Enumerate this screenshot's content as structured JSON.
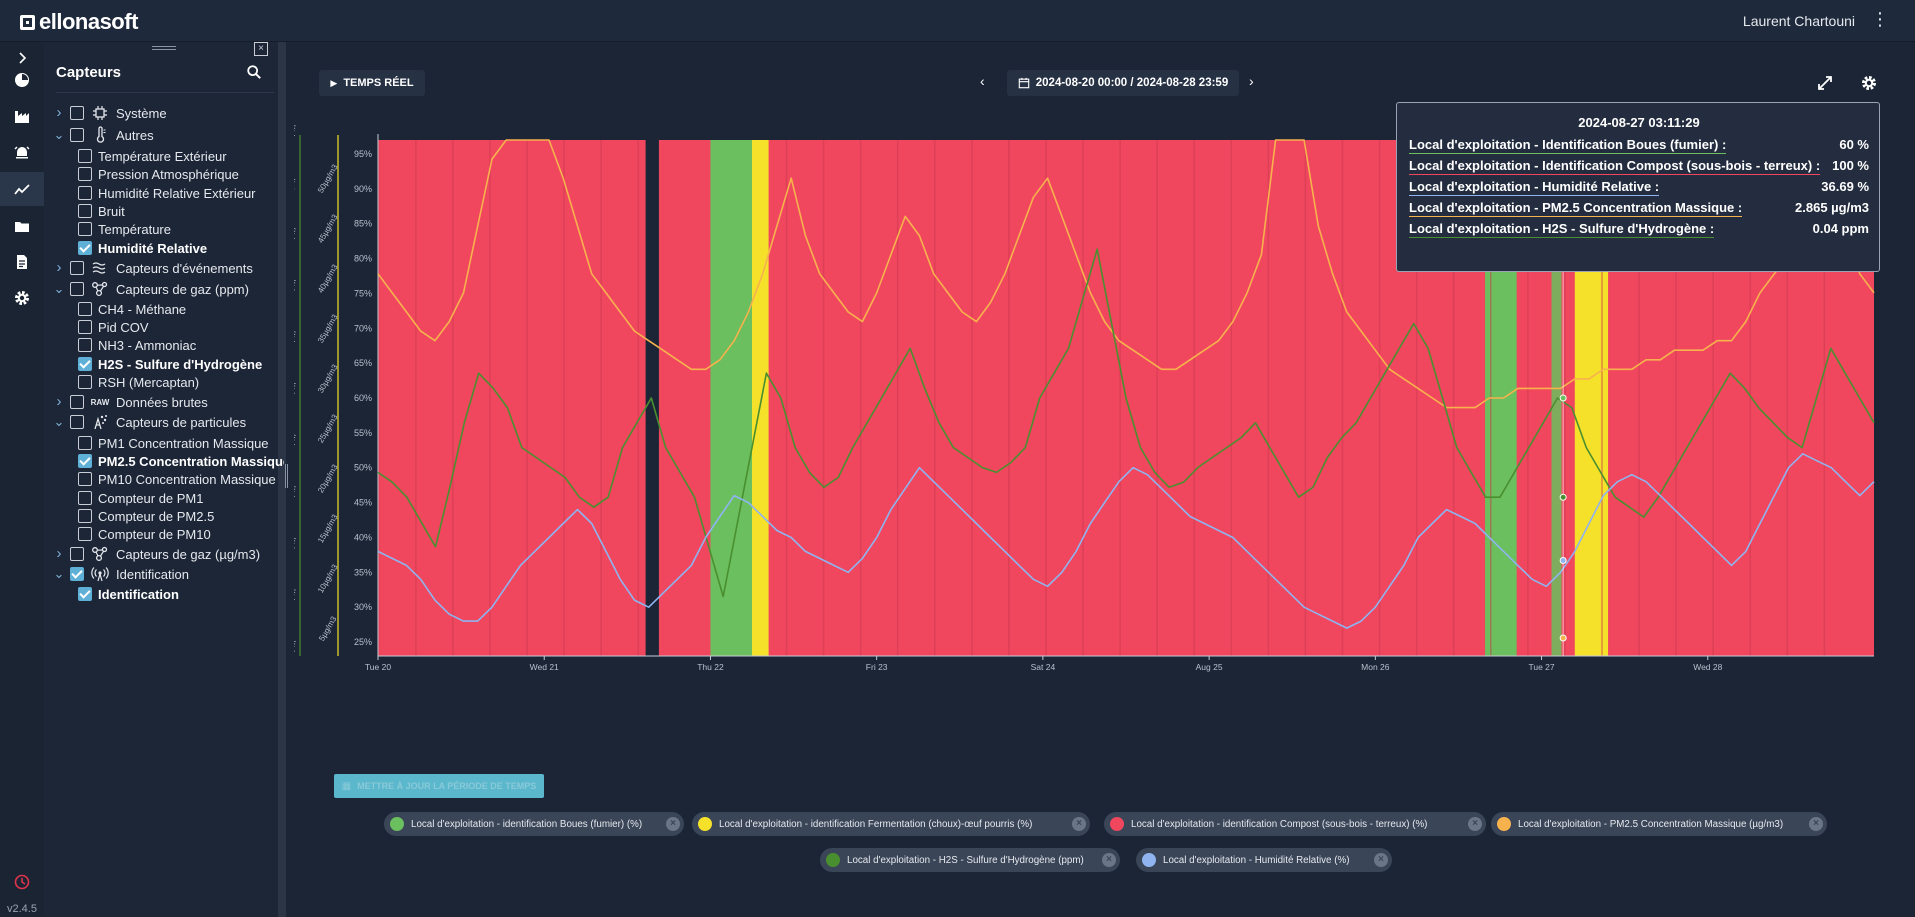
{
  "app": {
    "logo": "ellonasoft",
    "user": "Laurent Chartouni",
    "version": "v2.4.5"
  },
  "rail": [
    "chevron-right-icon",
    "dashboard-icon",
    "factory-icon",
    "alarm-icon",
    "chart-line-icon",
    "folder-icon",
    "document-icon",
    "gear-icon"
  ],
  "sidebar": {
    "title": "Capteurs",
    "tree": [
      {
        "label": "Système",
        "level": 0,
        "expand": true,
        "checked": false,
        "icon": "cpu-icon"
      },
      {
        "label": "Autres",
        "level": 0,
        "expand": "open",
        "checked": false,
        "icon": "thermometer-icon"
      },
      {
        "label": "Température Extérieur",
        "level": 1,
        "checked": false
      },
      {
        "label": "Pression Atmosphérique",
        "level": 1,
        "checked": false
      },
      {
        "label": "Humidité Relative Extérieur",
        "level": 1,
        "checked": false
      },
      {
        "label": "Bruit",
        "level": 1,
        "checked": false
      },
      {
        "label": "Température",
        "level": 1,
        "checked": false
      },
      {
        "label": "Humidité Relative",
        "level": 1,
        "checked": true
      },
      {
        "label": "Capteurs d'événements",
        "level": 0,
        "expand": true,
        "checked": false,
        "icon": "waves-icon"
      },
      {
        "label": "Capteurs de gaz (ppm)",
        "level": 0,
        "expand": "open",
        "checked": false,
        "icon": "molecule-icon"
      },
      {
        "label": "CH4 - Méthane",
        "level": 1,
        "checked": false
      },
      {
        "label": "Pid COV",
        "level": 1,
        "checked": false
      },
      {
        "label": "NH3 - Ammoniac",
        "level": 1,
        "checked": false
      },
      {
        "label": "H2S - Sulfure d'Hydrogène",
        "level": 1,
        "checked": true
      },
      {
        "label": "RSH (Mercaptan)",
        "level": 1,
        "checked": false
      },
      {
        "label": "Données brutes",
        "level": 0,
        "expand": true,
        "checked": false,
        "icon": "raw-icon",
        "iconText": "RAW"
      },
      {
        "label": "Capteurs de particules",
        "level": 0,
        "expand": "open",
        "checked": false,
        "icon": "particles-icon"
      },
      {
        "label": "PM1 Concentration Massique",
        "level": 1,
        "checked": false
      },
      {
        "label": "PM2.5 Concentration Massique",
        "level": 1,
        "checked": true
      },
      {
        "label": "PM10 Concentration Massique",
        "level": 1,
        "checked": false
      },
      {
        "label": "Compteur de PM1",
        "level": 1,
        "checked": false
      },
      {
        "label": "Compteur de PM2.5",
        "level": 1,
        "checked": false
      },
      {
        "label": "Compteur de PM10",
        "level": 1,
        "checked": false
      },
      {
        "label": "Capteurs de gaz (µg/m3)",
        "level": 0,
        "expand": true,
        "checked": false,
        "icon": "molecule-icon"
      },
      {
        "label": "Identification",
        "level": 0,
        "expand": "open",
        "checked": true,
        "icon": "antenna-icon"
      },
      {
        "label": "Identification",
        "level": 1,
        "checked": true
      }
    ]
  },
  "toolbar": {
    "realtime": "TEMPS RÉEL",
    "period": "2024-08-20 00:00 / 2024-08-28 23:59",
    "update": "METTRE À JOUR LA PÉRIODE DE TEMPS"
  },
  "colors": {
    "red": "#f0475f",
    "green": "#6bbf5e",
    "yellow": "#f5e02a",
    "orange": "#f7b24d",
    "darkgreen": "#4a8f2f",
    "blue": "#8fb4f0"
  },
  "chart_data": {
    "type": "line",
    "x_ticks": [
      "Tue 20",
      "Wed 21",
      "Thu 22",
      "Fri 23",
      "Sat 24",
      "Aug 25",
      "Mon 26",
      "Tue 27",
      "Wed 28"
    ],
    "y_ticks_percent": [
      "95%",
      "90%",
      "85%",
      "80%",
      "75%",
      "70%",
      "65%",
      "60%",
      "55%",
      "50%",
      "45%",
      "40%",
      "35%",
      "30%",
      "25%"
    ],
    "y_ticks_ugm3": [
      "50µg/m3",
      "45µg/m3",
      "40µg/m3",
      "35µg/m3",
      "30µg/m3",
      "25µg/m3",
      "20µg/m3",
      "15µg/m3",
      "10µg/m3",
      "5µg/m3"
    ],
    "y_ticks_ppm": [
      "0.11ppm",
      "0.1ppm",
      "0.09ppm",
      "0.08ppm",
      "0.07ppm",
      "0.06ppm",
      "0.05ppm",
      "0.04ppm",
      "0.03ppm",
      "0.02ppm",
      "0.01ppm"
    ],
    "series": [
      {
        "name": "Local d'exploitation - identification Boues (fumier) (%)",
        "color": "#6bbf5e",
        "kind": "band",
        "values": [
          [
            2.0,
            2.25
          ]
        ]
      },
      {
        "name": "Local d'exploitation - identification Fermentation (choux)-œuf pourris (%)",
        "color": "#f5e02a",
        "kind": "band",
        "values": [
          [
            2.2,
            2.35
          ],
          [
            7.2,
            7.4
          ]
        ]
      },
      {
        "name": "Local d'exploitation - identification Compost (sous-bois - terreux) (%)",
        "color": "#f0475f",
        "kind": "band",
        "values": [
          [
            0,
            9
          ]
        ]
      },
      {
        "name": "Local d'exploitation - PM2.5 Concentration Massique (µg/m3)",
        "color": "#f7b24d",
        "kind": "line",
        "values": [
          40,
          38,
          36,
          34,
          33,
          35,
          38,
          45,
          52,
          60,
          70,
          65,
          55,
          50,
          45,
          40,
          38,
          36,
          34,
          33,
          32,
          31,
          30,
          30,
          31,
          33,
          36,
          40,
          45,
          50,
          44,
          40,
          38,
          36,
          35,
          38,
          42,
          46,
          44,
          40,
          38,
          36,
          35,
          37,
          40,
          44,
          48,
          50,
          46,
          42,
          38,
          35,
          33,
          32,
          31,
          30,
          30,
          31,
          32,
          33,
          35,
          38,
          42,
          60,
          72,
          55,
          45,
          40,
          36,
          34,
          32,
          30,
          29,
          28,
          27,
          26,
          26,
          26,
          27,
          27,
          28,
          28,
          28,
          28,
          29,
          29,
          30,
          30,
          30,
          31,
          31,
          32,
          32,
          32,
          33,
          33,
          35,
          38,
          40,
          42,
          45,
          50,
          52,
          45,
          40,
          38
        ]
      },
      {
        "name": "Local d'exploitation - H2S - Sulfure d'Hydrogène (ppm)",
        "color": "#4a8f2f",
        "kind": "line",
        "values": [
          0.045,
          0.043,
          0.04,
          0.035,
          0.03,
          0.042,
          0.055,
          0.065,
          0.062,
          0.058,
          0.05,
          0.048,
          0.046,
          0.044,
          0.04,
          0.038,
          0.04,
          0.05,
          0.055,
          0.06,
          0.05,
          0.045,
          0.04,
          0.03,
          0.02,
          0.035,
          0.05,
          0.065,
          0.06,
          0.05,
          0.045,
          0.042,
          0.044,
          0.05,
          0.055,
          0.06,
          0.065,
          0.07,
          0.062,
          0.055,
          0.05,
          0.048,
          0.046,
          0.045,
          0.047,
          0.05,
          0.06,
          0.065,
          0.07,
          0.08,
          0.09,
          0.075,
          0.06,
          0.05,
          0.045,
          0.042,
          0.043,
          0.046,
          0.048,
          0.05,
          0.052,
          0.055,
          0.05,
          0.045,
          0.04,
          0.042,
          0.048,
          0.052,
          0.055,
          0.06,
          0.065,
          0.07,
          0.075,
          0.07,
          0.06,
          0.05,
          0.045,
          0.04,
          0.04,
          0.045,
          0.05,
          0.055,
          0.06,
          0.058,
          0.05,
          0.045,
          0.04,
          0.038,
          0.036,
          0.04,
          0.045,
          0.05,
          0.055,
          0.06,
          0.065,
          0.062,
          0.058,
          0.055,
          0.052,
          0.05,
          0.06,
          0.07,
          0.065,
          0.06,
          0.055
        ]
      },
      {
        "name": "Local d'exploitation - Humidité Relative (%)",
        "color": "#8fb4f0",
        "kind": "line",
        "values": [
          38,
          37,
          36,
          34,
          31,
          29,
          28,
          28,
          30,
          33,
          36,
          38,
          40,
          42,
          44,
          42,
          38,
          34,
          31,
          30,
          32,
          34,
          36,
          40,
          43,
          46,
          45,
          43,
          41,
          40,
          38,
          37,
          36,
          35,
          37,
          40,
          44,
          47,
          50,
          48,
          46,
          44,
          42,
          40,
          38,
          36,
          34,
          33,
          35,
          38,
          42,
          45,
          48,
          50,
          49,
          47,
          45,
          43,
          42,
          41,
          40,
          38,
          36,
          34,
          32,
          30,
          29,
          28,
          27,
          28,
          30,
          33,
          36,
          40,
          42,
          44,
          43,
          42,
          40,
          38,
          36,
          34,
          33,
          35,
          38,
          42,
          46,
          48,
          49,
          48,
          46,
          44,
          42,
          40,
          38,
          36,
          38,
          42,
          46,
          50,
          52,
          51,
          50,
          48,
          46,
          48
        ]
      }
    ]
  },
  "tooltip": {
    "date": "2024-08-27 03:11:29",
    "rows": [
      {
        "label": "Local d'exploitation - Identification Boues (fumier) :",
        "value": "60 %",
        "color": "#6bbf5e"
      },
      {
        "label": "Local d'exploitation - Identification Compost (sous-bois - terreux) :",
        "value": "100 %",
        "color": "#f0475f"
      },
      {
        "label": "Local d'exploitation - Humidité Relative :",
        "value": "36.69 %",
        "color": "#8fb4f0"
      },
      {
        "label": "Local d'exploitation - PM2.5 Concentration Massique :",
        "value": "2.865 µg/m3",
        "color": "#f7b24d"
      },
      {
        "label": "Local d'exploitation - H2S - Sulfure d'Hydrogène :",
        "value": "0.04 ppm",
        "color": "#4a8f2f"
      }
    ]
  },
  "legend": [
    {
      "label": "Local d'exploitation - identification Boues (fumier) (%)",
      "color": "#6bbf5e"
    },
    {
      "label": "Local d'exploitation - identification Fermentation (choux)-œuf pourris (%)",
      "color": "#f5e02a"
    },
    {
      "label": "Local d'exploitation - identification Compost (sous-bois - terreux) (%)",
      "color": "#f0475f"
    },
    {
      "label": "Local d'exploitation - PM2.5 Concentration Massique (µg/m3)",
      "color": "#f7b24d"
    },
    {
      "label": "Local d'exploitation - H2S - Sulfure d'Hydrogène (ppm)",
      "color": "#4a8f2f"
    },
    {
      "label": "Local d'exploitation - Humidité Relative (%)",
      "color": "#8fb4f0"
    }
  ]
}
